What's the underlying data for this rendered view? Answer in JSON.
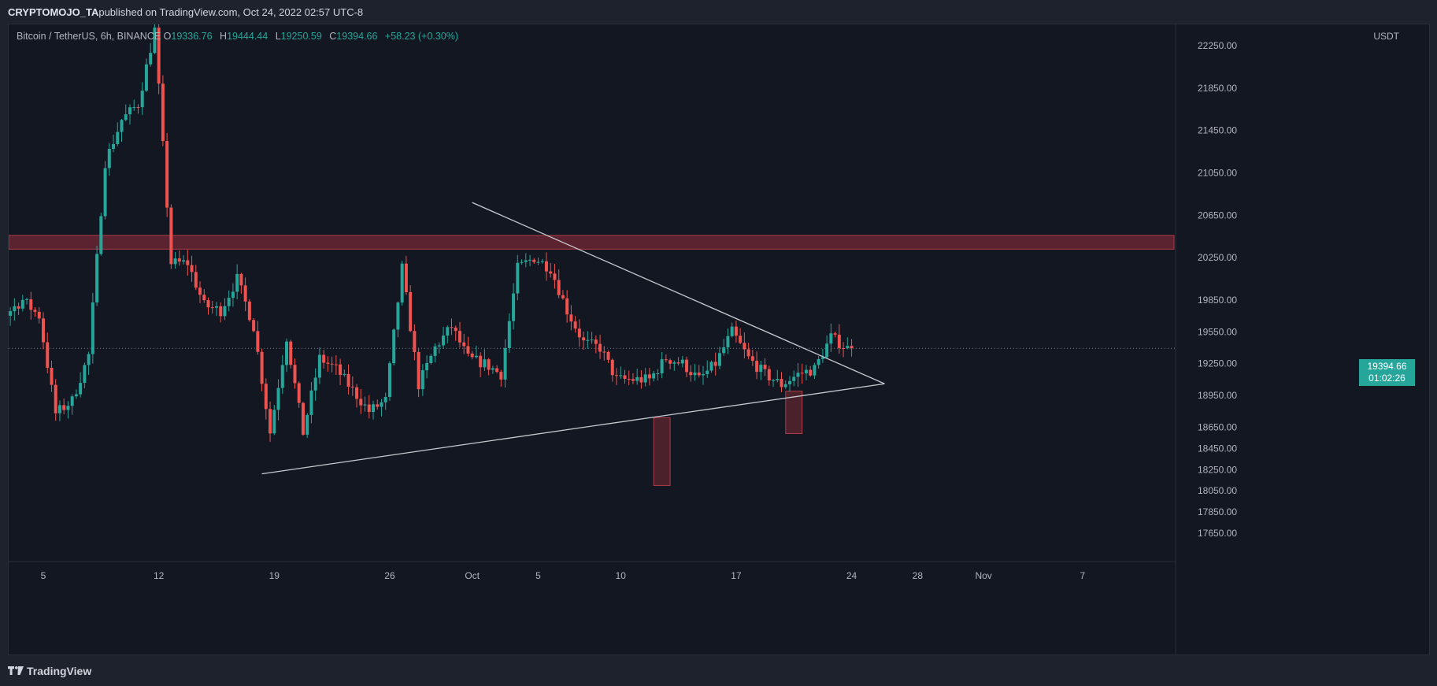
{
  "header": {
    "author": "CRYPTOMOJO_TA",
    "published_text": " published on TradingView.com, Oct 24, 2022 02:57 UTC-8"
  },
  "legend": {
    "symbol": "Bitcoin / TetherUS, 6h, BINANCE",
    "open_label": "O",
    "open_value": "19336.76",
    "high_label": "H",
    "high_value": "19444.44",
    "low_label": "L",
    "low_value": "19250.59",
    "close_label": "C",
    "close_value": "19394.66",
    "change": "+58.23 (+0.30%)"
  },
  "price_tag": {
    "price": "19394.66",
    "countdown": "01:02:26"
  },
  "footer": {
    "brand": "TradingView"
  },
  "colors": {
    "up": "#26a69a",
    "down": "#ef5350",
    "zone": "#7a2a35",
    "background": "#131722"
  },
  "chart_data": {
    "type": "candlestick",
    "currency": "USDT",
    "ylim": [
      17520,
      22500
    ],
    "y_ticks": [
      {
        "value": 22250,
        "label": "22250.00"
      },
      {
        "value": 21850,
        "label": "21850.00"
      },
      {
        "value": 21450,
        "label": "21450.00"
      },
      {
        "value": 21050,
        "label": "21050.00"
      },
      {
        "value": 20650,
        "label": "20650.00"
      },
      {
        "value": 20250,
        "label": "20250.00"
      },
      {
        "value": 19850,
        "label": "19850.00"
      },
      {
        "value": 19550,
        "label": "19550.00"
      },
      {
        "value": 19250,
        "label": "19250.00"
      },
      {
        "value": 18950,
        "label": "18950.00"
      },
      {
        "value": 18650,
        "label": "18650.00"
      },
      {
        "value": 18450,
        "label": "18450.00"
      },
      {
        "value": 18250,
        "label": "18250.00"
      },
      {
        "value": 18050,
        "label": "18050.00"
      },
      {
        "value": 17850,
        "label": "17850.00"
      },
      {
        "value": 17650,
        "label": "17650.00"
      }
    ],
    "x_ticks": [
      {
        "date": "2022-09-05",
        "label": "5"
      },
      {
        "date": "2022-09-12",
        "label": "12"
      },
      {
        "date": "2022-09-19",
        "label": "19"
      },
      {
        "date": "2022-09-26",
        "label": "26"
      },
      {
        "date": "2022-10-01",
        "label": "Oct"
      },
      {
        "date": "2022-10-05",
        "label": "5"
      },
      {
        "date": "2022-10-10",
        "label": "10"
      },
      {
        "date": "2022-10-17",
        "label": "17"
      },
      {
        "date": "2022-10-24",
        "label": "24"
      },
      {
        "date": "2022-10-28",
        "label": "28"
      },
      {
        "date": "2022-11-01",
        "label": "Nov"
      },
      {
        "date": "2022-11-07",
        "label": "7"
      }
    ],
    "current_price": 19394.66,
    "resistance_zone": {
      "from_date": "2022-08-31",
      "to_date": "2022-11-13",
      "low": 20330,
      "high": 20460
    },
    "trendlines": [
      {
        "name": "descending",
        "start_date": "2022-10-01",
        "start_price": 20770,
        "end_date": "2022-10-26",
        "end_price": 19060
      },
      {
        "name": "ascending",
        "start_date": "2022-09-18 06:00",
        "start_price": 18210,
        "end_date": "2022-10-26",
        "end_price": 19060
      }
    ],
    "highlight_boxes": [
      {
        "from_date": "2022-10-12",
        "to_date": "2022-10-13",
        "low": 18100,
        "high": 18740
      },
      {
        "from_date": "2022-10-20",
        "to_date": "2022-10-21",
        "low": 18590,
        "high": 18990
      }
    ],
    "anchors": [
      {
        "date": "2022-08-31",
        "close": 19700
      },
      {
        "date": "2022-09-01",
        "close": 19780
      },
      {
        "date": "2022-09-02",
        "close": 19800
      },
      {
        "date": "2022-09-03",
        "close": 19720
      },
      {
        "date": "2022-09-04",
        "close": 19850
      },
      {
        "date": "2022-09-05",
        "close": 19700
      },
      {
        "date": "2022-09-06",
        "close": 18780
      },
      {
        "date": "2022-09-07",
        "close": 18900
      },
      {
        "date": "2022-09-08",
        "close": 19330
      },
      {
        "date": "2022-09-09",
        "close": 21150
      },
      {
        "date": "2022-09-10",
        "close": 21550
      },
      {
        "date": "2022-09-11",
        "close": 21700
      },
      {
        "date": "2022-09-12",
        "close": 22400
      },
      {
        "date": "2022-09-13",
        "close": 20200
      },
      {
        "date": "2022-09-14",
        "close": 20200
      },
      {
        "date": "2022-09-15",
        "close": 19800
      },
      {
        "date": "2022-09-16",
        "close": 19750
      },
      {
        "date": "2022-09-17",
        "close": 20050
      },
      {
        "date": "2022-09-18",
        "close": 19600
      },
      {
        "date": "2022-09-19",
        "close": 18600
      },
      {
        "date": "2022-09-20",
        "close": 19500
      },
      {
        "date": "2022-09-21",
        "close": 18600
      },
      {
        "date": "2022-09-22",
        "close": 19300
      },
      {
        "date": "2022-09-23",
        "close": 19200
      },
      {
        "date": "2022-09-24",
        "close": 19000
      },
      {
        "date": "2022-09-25",
        "close": 18800
      },
      {
        "date": "2022-09-26",
        "close": 18900
      },
      {
        "date": "2022-09-27",
        "close": 20150
      },
      {
        "date": "2022-09-28",
        "close": 19050
      },
      {
        "date": "2022-09-29",
        "close": 19400
      },
      {
        "date": "2022-09-30",
        "close": 19600
      },
      {
        "date": "2022-10-01",
        "close": 19300
      },
      {
        "date": "2022-10-02",
        "close": 19250
      },
      {
        "date": "2022-10-03",
        "close": 19150
      },
      {
        "date": "2022-10-04",
        "close": 20150
      },
      {
        "date": "2022-10-05",
        "close": 20250
      },
      {
        "date": "2022-10-06",
        "close": 20150
      },
      {
        "date": "2022-10-07",
        "close": 19750
      },
      {
        "date": "2022-10-08",
        "close": 19450
      },
      {
        "date": "2022-10-09",
        "close": 19400
      },
      {
        "date": "2022-10-10",
        "close": 19100
      },
      {
        "date": "2022-10-11",
        "close": 19100
      },
      {
        "date": "2022-10-12",
        "close": 19100
      },
      {
        "date": "2022-10-13",
        "close": 19300
      },
      {
        "date": "2022-10-14",
        "close": 19250
      },
      {
        "date": "2022-10-15",
        "close": 19100
      },
      {
        "date": "2022-10-16",
        "close": 19250
      },
      {
        "date": "2022-10-17",
        "close": 19550
      },
      {
        "date": "2022-10-18",
        "close": 19300
      },
      {
        "date": "2022-10-19",
        "close": 19150
      },
      {
        "date": "2022-10-20",
        "close": 19050
      },
      {
        "date": "2022-10-21",
        "close": 19150
      },
      {
        "date": "2022-10-22",
        "close": 19200
      },
      {
        "date": "2022-10-23",
        "close": 19500
      },
      {
        "date": "2022-10-24",
        "close": 19394.66
      }
    ]
  }
}
